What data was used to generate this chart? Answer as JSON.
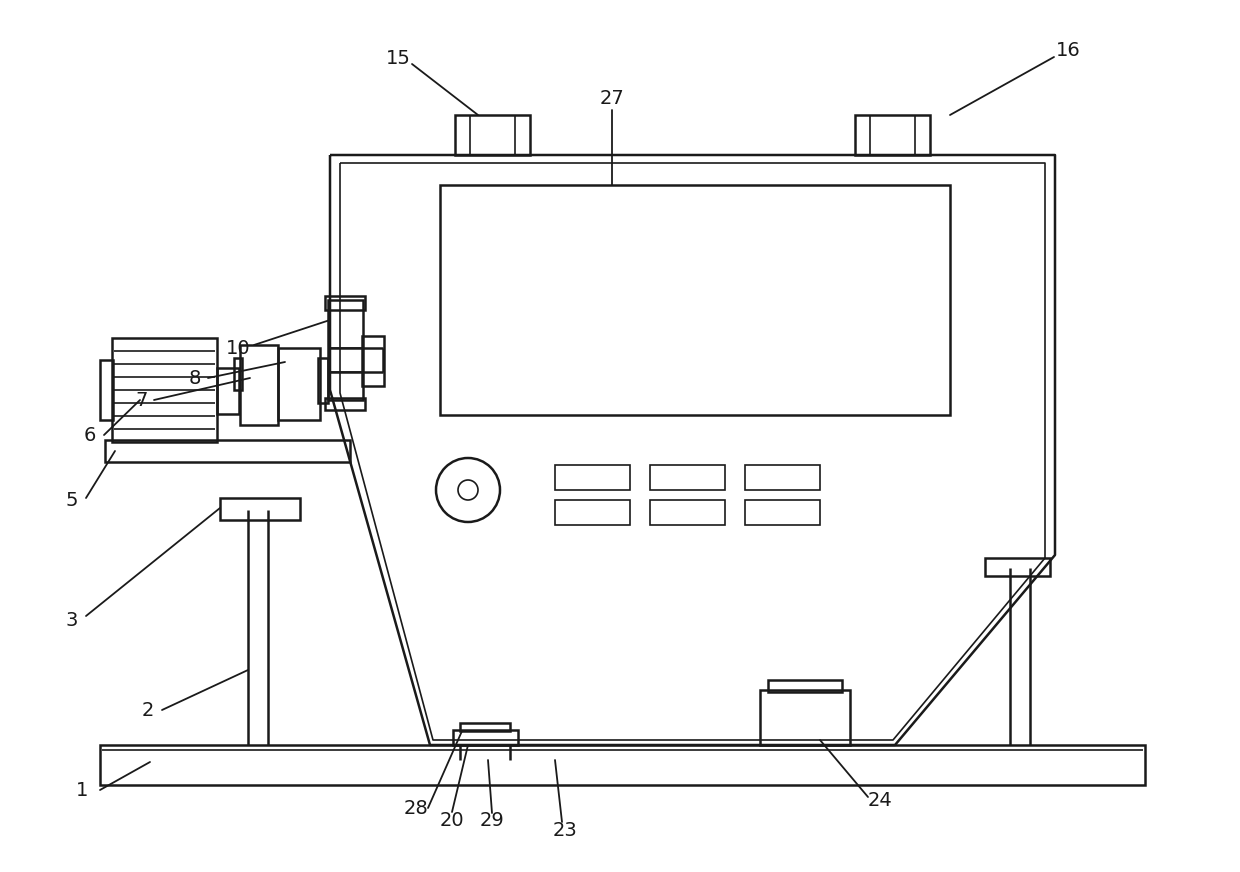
{
  "bg_color": "#ffffff",
  "lc": "#1a1a1a",
  "lw": 1.8,
  "lw_thin": 1.2,
  "lw_med": 1.5,
  "figw": 12.4,
  "figh": 8.72,
  "dpi": 100
}
